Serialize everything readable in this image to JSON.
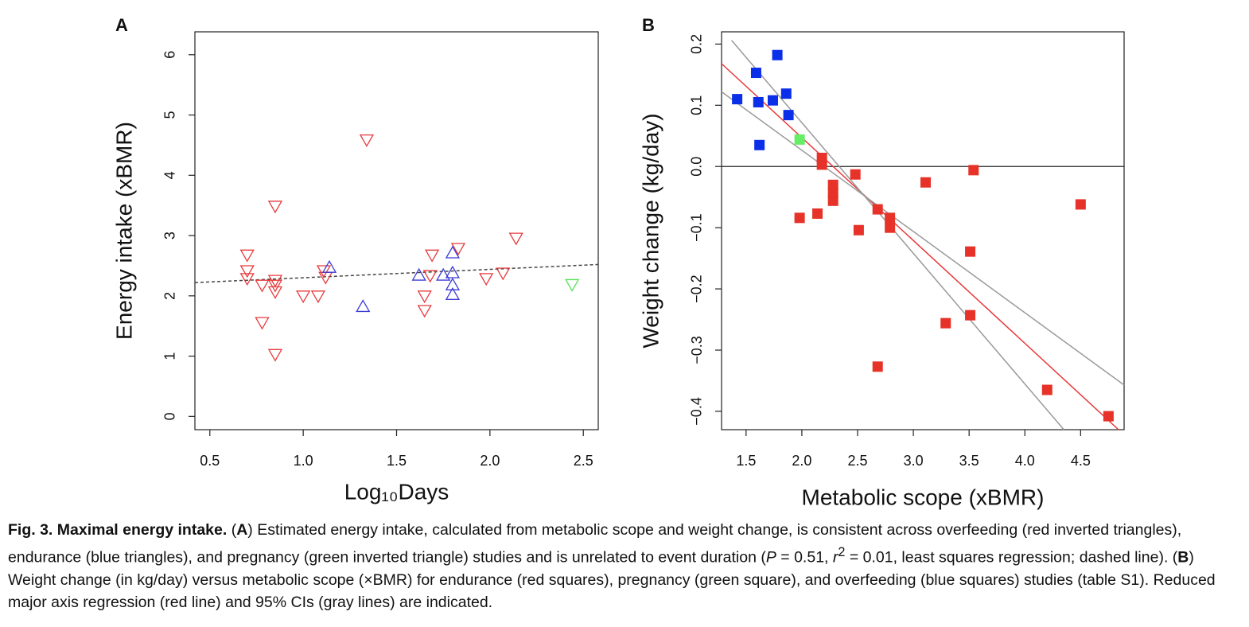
{
  "chart_data": [
    {
      "type": "scatter",
      "panel_label": "A",
      "y_label": "Energy intake (xBMR)",
      "x_label": "Log₁₀Days",
      "xlim": [
        0.42,
        2.58
      ],
      "ylim": [
        -0.22,
        6.38
      ],
      "xticks": [
        0.5,
        {
          "value": 1,
          "label": "1.0"
        },
        1.5,
        {
          "value": 2,
          "label": "2.0"
        },
        2.5
      ],
      "yticks": [
        0,
        1,
        2,
        3,
        4,
        5,
        6
      ],
      "series": [
        {
          "color": "#e8393b",
          "marker": "triangle-down",
          "x": [
            0.7,
            0.7,
            0.7,
            0.85,
            0.85,
            0.85,
            0.85,
            0.78,
            0.78,
            0.85,
            1.0,
            1.08,
            1.11,
            1.12,
            1.34,
            1.69,
            1.68,
            1.65,
            1.65,
            1.83,
            1.98,
            2.07,
            2.14
          ],
          "values": [
            2.68,
            2.42,
            2.29,
            3.49,
            2.26,
            2.18,
            2.07,
            2.18,
            1.56,
            1.03,
            2.0,
            2.0,
            2.42,
            2.31,
            4.59,
            2.68,
            2.34,
            2.0,
            1.76,
            2.79,
            2.29,
            2.38,
            2.96
          ]
        },
        {
          "color": "#3b3bd6",
          "marker": "triangle-up",
          "x": [
            1.14,
            1.32,
            1.62,
            1.75,
            1.8,
            1.8,
            1.8,
            1.8
          ],
          "values": [
            2.47,
            1.82,
            2.34,
            2.34,
            2.71,
            2.38,
            2.18,
            2.02
          ]
        },
        {
          "color": "#55e055",
          "marker": "triangle-down",
          "x": [
            2.44
          ],
          "values": [
            2.19
          ]
        }
      ],
      "lines": [
        {
          "color": "#444444",
          "dash": true,
          "x": [
            0.42,
            2.58
          ],
          "values": [
            2.22,
            2.52
          ]
        }
      ]
    },
    {
      "type": "scatter",
      "panel_label": "B",
      "y_label": "Weight change (kg/day)",
      "x_label": "Metabolic scope (xBMR)",
      "xlim": [
        1.28,
        4.89
      ],
      "ylim": [
        -0.43,
        0.22
      ],
      "xticks": [
        1.5,
        {
          "value": 2,
          "label": "2.0"
        },
        2.5,
        {
          "value": 3,
          "label": "3.0"
        },
        3.5,
        {
          "value": 4,
          "label": "4.0"
        },
        4.5
      ],
      "yticks": [
        {
          "value": -0.4,
          "label": "−0.4"
        },
        {
          "value": -0.3,
          "label": "−0.3"
        },
        {
          "value": -0.2,
          "label": "−0.2"
        },
        {
          "value": -0.1,
          "label": "−0.1"
        },
        {
          "value": 0,
          "label": "0.0"
        },
        0.1,
        0.2
      ],
      "hline": 0,
      "series": [
        {
          "color": "#0b2ee8",
          "marker": "square",
          "x": [
            1.42,
            1.59,
            1.78,
            1.61,
            1.74,
            1.86,
            1.88,
            1.62
          ],
          "values": [
            0.11,
            0.153,
            0.182,
            0.105,
            0.108,
            0.119,
            0.084,
            0.035
          ]
        },
        {
          "color": "#66ee66",
          "marker": "square",
          "x": [
            1.98
          ],
          "values": [
            0.044
          ]
        },
        {
          "color": "#e63228",
          "marker": "square",
          "x": [
            2.18,
            2.18,
            2.28,
            2.28,
            2.28,
            1.98,
            2.14,
            2.48,
            2.51,
            2.68,
            2.79,
            2.79,
            3.11,
            3.54,
            4.5,
            3.51,
            3.51,
            3.29,
            2.68,
            4.2,
            4.75
          ],
          "values": [
            0.014,
            0.003,
            -0.03,
            -0.043,
            -0.056,
            -0.084,
            -0.077,
            -0.013,
            -0.104,
            -0.07,
            -0.084,
            -0.1,
            -0.026,
            -0.006,
            -0.062,
            -0.139,
            -0.243,
            -0.256,
            -0.327,
            -0.365,
            -0.408
          ]
        }
      ],
      "lines": [
        {
          "color": "#e8393b",
          "dash": false,
          "x": [
            1.28,
            4.84
          ],
          "values": [
            0.168,
            -0.43
          ]
        },
        {
          "color": "#9a9a9a",
          "dash": false,
          "x": [
            1.37,
            4.35
          ],
          "values": [
            0.206,
            -0.43
          ]
        },
        {
          "color": "#9a9a9a",
          "dash": false,
          "x": [
            1.28,
            4.89
          ],
          "values": [
            0.122,
            -0.357
          ]
        }
      ]
    }
  ],
  "caption": {
    "runs": [
      {
        "text": "Fig. 3.  Maximal energy intake.",
        "style": "bold"
      },
      {
        "text": " (",
        "style": "normal"
      },
      {
        "text": "A",
        "style": "bold"
      },
      {
        "text": ") Estimated energy intake, calculated from metabolic scope and weight change, is consistent across overfeeding (red inverted triangles), endurance (blue triangles), and pregnancy (green inverted triangle) studies and is unrelated to event duration (",
        "style": "normal"
      },
      {
        "text": "P",
        "style": "italic"
      },
      {
        "text": " = 0.51, ",
        "style": "normal"
      },
      {
        "text": "r",
        "style": "italic"
      },
      {
        "text": "2",
        "style": "sup"
      },
      {
        "text": " = 0.01, least squares regression; dashed line). (",
        "style": "normal"
      },
      {
        "text": "B",
        "style": "bold"
      },
      {
        "text": ") Weight change (in kg/day) versus metabolic scope (×BMR) for endurance (red squares), pregnancy (green square), and overfeeding (blue squares) studies (table S1). Reduced major axis regression (red line) and 95% CIs (gray lines) are indicated.",
        "style": "normal"
      }
    ]
  }
}
